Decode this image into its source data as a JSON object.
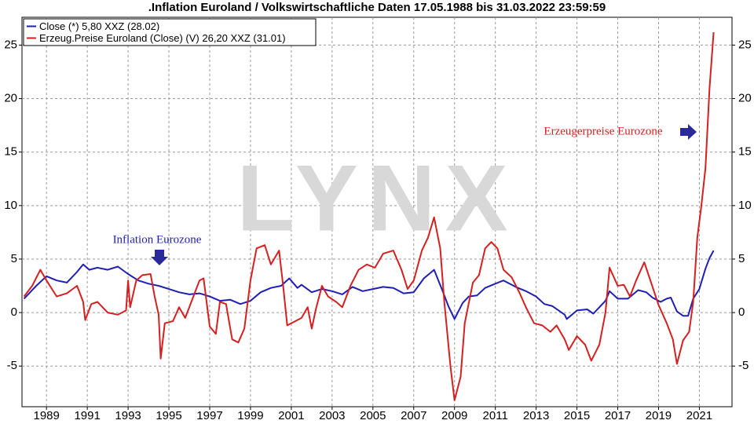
{
  "chart_data": {
    "type": "line",
    "title": ".Inflation Euroland / Volkswirtschaftliche Daten 17.05.1988 bis 31.03.2022 23:59:59",
    "watermark": "LYNX",
    "xlim": [
      1988.3,
      2023.1
    ],
    "ylim": [
      -8.8,
      27.6
    ],
    "yticks": [
      -5,
      0,
      5,
      10,
      15,
      20,
      25
    ],
    "xticks": [
      {
        "value": 1989.5,
        "label": "1989"
      },
      {
        "value": 1991.5,
        "label": "1991"
      },
      {
        "value": 1993.5,
        "label": "1993"
      },
      {
        "value": 1995.5,
        "label": "1995"
      },
      {
        "value": 1997.5,
        "label": "1997"
      },
      {
        "value": 1999.5,
        "label": "1999"
      },
      {
        "value": 2001.5,
        "label": "2001"
      },
      {
        "value": 2003.5,
        "label": "2003"
      },
      {
        "value": 2005.5,
        "label": "2005"
      },
      {
        "value": 2007.5,
        "label": "2007"
      },
      {
        "value": 2009.5,
        "label": "2009"
      },
      {
        "value": 2011.5,
        "label": "2011"
      },
      {
        "value": 2013.5,
        "label": "2013"
      },
      {
        "value": 2015.5,
        "label": "2015"
      },
      {
        "value": 2017.5,
        "label": "2017"
      },
      {
        "value": 2019.5,
        "label": "2019"
      },
      {
        "value": 2021.5,
        "label": "2021"
      }
    ],
    "grid": true,
    "legend": "top-left",
    "series": [
      {
        "name": "Close (*) 5,80 XXZ (28.02)",
        "color": "#1f1fb4",
        "x": [
          1988.4,
          1989.0,
          1989.5,
          1990.0,
          1990.5,
          1991.0,
          1991.3,
          1991.6,
          1992.0,
          1992.5,
          1993.0,
          1993.5,
          1994.0,
          1994.5,
          1995.0,
          1995.5,
          1996.0,
          1996.5,
          1997.0,
          1997.5,
          1998.0,
          1998.5,
          1999.0,
          1999.5,
          2000.0,
          2000.5,
          2001.0,
          2001.4,
          2001.8,
          2002.0,
          2002.5,
          2003.0,
          2003.5,
          2004.0,
          2004.5,
          2005.0,
          2005.5,
          2006.0,
          2006.5,
          2007.0,
          2007.5,
          2008.0,
          2008.5,
          2008.9,
          2009.2,
          2009.5,
          2009.9,
          2010.2,
          2010.6,
          2011.0,
          2011.5,
          2011.9,
          2012.5,
          2013.0,
          2013.5,
          2013.9,
          2014.3,
          2014.9,
          2015.0,
          2015.5,
          2016.0,
          2016.3,
          2016.9,
          2017.1,
          2017.5,
          2018.0,
          2018.5,
          2018.9,
          2019.2,
          2019.6,
          2019.9,
          2020.1,
          2020.4,
          2020.7,
          2020.95,
          2021.2,
          2021.5,
          2021.8,
          2022.0,
          2022.2
        ],
        "values": [
          1.3,
          2.5,
          3.4,
          3.0,
          2.8,
          3.8,
          4.5,
          4.0,
          4.2,
          4.0,
          4.3,
          3.6,
          3.0,
          2.7,
          2.5,
          2.2,
          1.9,
          1.7,
          1.8,
          1.5,
          1.1,
          1.2,
          0.8,
          1.1,
          1.9,
          2.3,
          2.5,
          3.2,
          2.3,
          2.6,
          1.9,
          2.2,
          2.0,
          1.7,
          2.4,
          2.0,
          2.2,
          2.4,
          2.3,
          1.8,
          1.9,
          3.2,
          4.0,
          2.1,
          0.6,
          -0.6,
          0.9,
          1.5,
          1.6,
          2.3,
          2.7,
          3.0,
          2.4,
          2.0,
          1.5,
          0.8,
          0.6,
          -0.2,
          -0.6,
          0.2,
          0.3,
          -0.1,
          1.1,
          2.0,
          1.3,
          1.3,
          2.1,
          1.9,
          1.4,
          1.0,
          1.3,
          1.4,
          0.1,
          -0.3,
          -0.3,
          1.3,
          2.2,
          4.1,
          5.1,
          5.8
        ]
      },
      {
        "name": "Erzeug.Preise Euroland (Close) (V) 26,20 XXZ (31.01)",
        "color": "#d42020",
        "x": [
          1988.4,
          1988.8,
          1989.2,
          1989.5,
          1990.0,
          1990.5,
          1991.0,
          1991.3,
          1991.4,
          1991.7,
          1992.0,
          1992.5,
          1993.0,
          1993.4,
          1993.5,
          1993.6,
          1993.9,
          1994.2,
          1994.6,
          1994.8,
          1995.0,
          1995.1,
          1995.3,
          1995.7,
          1996.0,
          1996.3,
          1996.6,
          1997.0,
          1997.2,
          1997.5,
          1997.8,
          1998.0,
          1998.3,
          1998.6,
          1998.9,
          1999.2,
          1999.5,
          1999.8,
          2000.2,
          2000.5,
          2000.9,
          2001.1,
          2001.3,
          2001.7,
          2002.0,
          2002.3,
          2002.5,
          2002.7,
          2003.0,
          2003.3,
          2003.7,
          2004.0,
          2004.4,
          2004.8,
          2005.2,
          2005.6,
          2006.0,
          2006.5,
          2006.9,
          2007.2,
          2007.5,
          2007.9,
          2008.2,
          2008.5,
          2008.8,
          2009.0,
          2009.3,
          2009.5,
          2009.8,
          2010.0,
          2010.4,
          2010.7,
          2011.0,
          2011.3,
          2011.6,
          2011.9,
          2012.3,
          2012.7,
          2013.0,
          2013.4,
          2013.8,
          2014.2,
          2014.5,
          2014.9,
          2015.1,
          2015.5,
          2015.9,
          2016.2,
          2016.6,
          2016.9,
          2017.1,
          2017.5,
          2017.8,
          2018.1,
          2018.4,
          2018.8,
          2019.1,
          2019.5,
          2019.9,
          2020.2,
          2020.4,
          2020.7,
          2021.0,
          2021.2,
          2021.4,
          2021.6,
          2021.8,
          2022.0,
          2022.2
        ],
        "values": [
          1.5,
          2.5,
          4.0,
          3.0,
          1.5,
          1.8,
          2.5,
          1.0,
          -0.7,
          0.8,
          1.0,
          0.0,
          -0.2,
          0.2,
          3.0,
          0.5,
          3.0,
          3.5,
          3.6,
          1.5,
          -0.2,
          -4.3,
          -1.0,
          -0.8,
          0.5,
          -0.5,
          1.0,
          3.0,
          3.2,
          -1.3,
          -2.0,
          1.0,
          0.8,
          -2.5,
          -2.8,
          -1.5,
          3.0,
          6.0,
          6.3,
          4.5,
          5.8,
          2.5,
          -1.2,
          -0.8,
          -0.5,
          0.5,
          -1.5,
          0.3,
          2.5,
          1.5,
          1.0,
          0.5,
          2.5,
          4.0,
          4.5,
          4.2,
          5.5,
          5.8,
          4.0,
          2.2,
          3.0,
          5.8,
          7.0,
          8.9,
          6.0,
          1.0,
          -5.0,
          -8.2,
          -6.0,
          -1.0,
          2.8,
          3.5,
          6.0,
          6.6,
          6.0,
          4.0,
          3.3,
          1.8,
          0.5,
          -1.0,
          -1.2,
          -1.8,
          -1.2,
          -2.5,
          -3.5,
          -2.2,
          -3.0,
          -4.5,
          -3.0,
          0.0,
          4.2,
          2.5,
          2.6,
          1.5,
          3.0,
          4.7,
          3.0,
          0.7,
          -1.0,
          -2.5,
          -4.8,
          -2.6,
          -1.8,
          1.0,
          7.0,
          10.0,
          13.5,
          21.0,
          26.2
        ]
      }
    ],
    "annotations": [
      {
        "text": "Inflation Eurozone",
        "color": "#1f1fb4"
      },
      {
        "text": "Erzeugerpreise Eurozone",
        "color": "#d42020"
      }
    ]
  }
}
